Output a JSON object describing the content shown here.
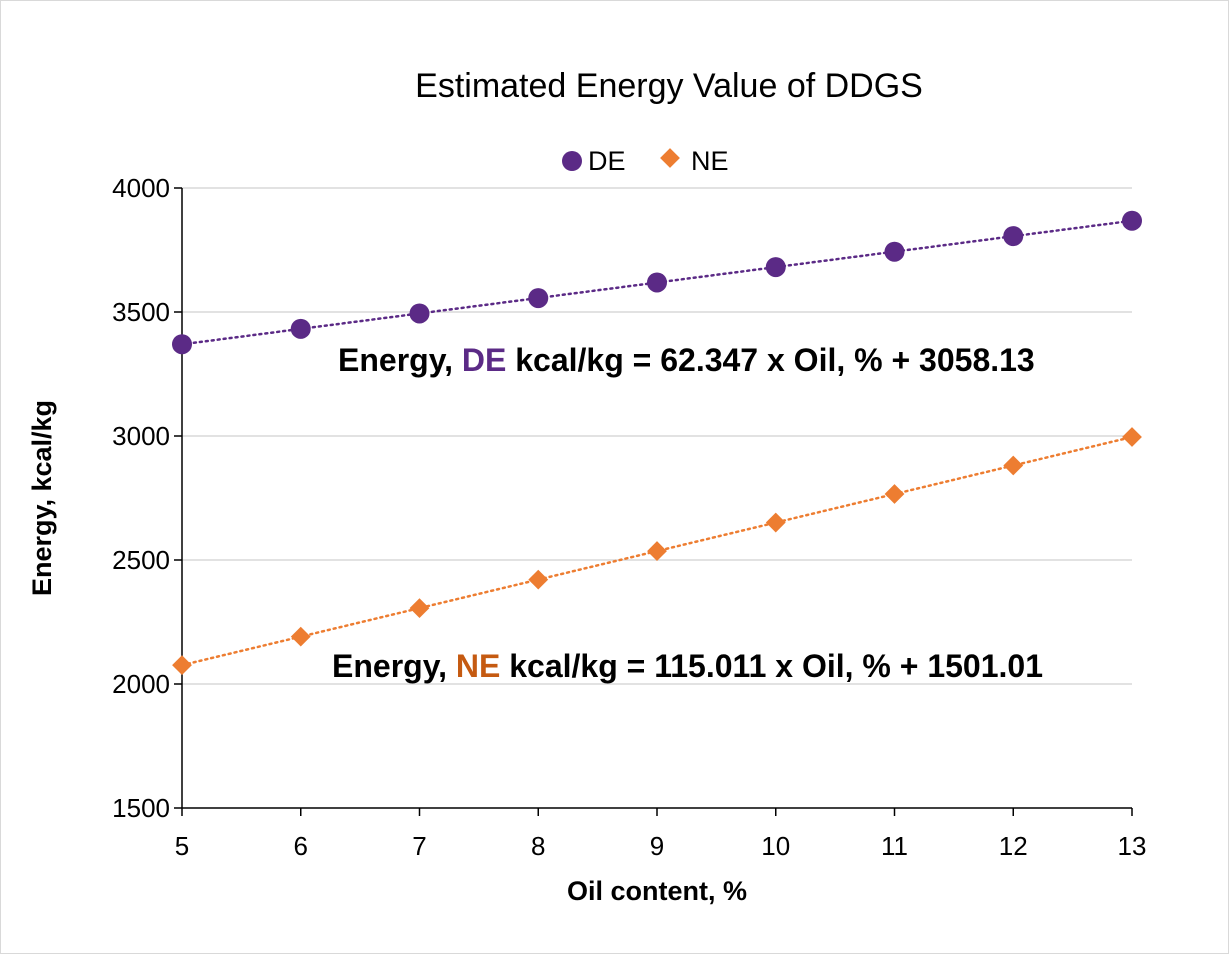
{
  "chart_data": {
    "type": "scatter",
    "title": "Estimated Energy Value of DDGS",
    "xlabel": "Oil content, %",
    "ylabel": "Energy,  kcal/kg",
    "xlim": [
      5,
      13
    ],
    "ylim": [
      1500,
      4000
    ],
    "x_ticks": [
      "5",
      "6",
      "7",
      "8",
      "9",
      "10",
      "11",
      "12",
      "13"
    ],
    "y_ticks": [
      "1500",
      "2000",
      "2500",
      "3000",
      "3500",
      "4000"
    ],
    "grid": "horizontal",
    "legend_position": "top",
    "x": [
      5,
      6,
      7,
      8,
      9,
      10,
      11,
      12,
      13
    ],
    "series": [
      {
        "name": "DE",
        "marker": "circle",
        "color": "#5b2a86",
        "values": [
          3370,
          3432,
          3494,
          3556,
          3619,
          3681,
          3743,
          3806,
          3868
        ],
        "trendline": "linear, dotted"
      },
      {
        "name": "NE",
        "marker": "diamond",
        "color": "#ed7d31",
        "values": [
          2076,
          2191,
          2306,
          2421,
          2536,
          2651,
          2766,
          2881,
          2996
        ],
        "trendline": "linear, dotted"
      }
    ],
    "annotations": [
      {
        "prefix": "Energy, ",
        "highlight": "DE",
        "highlight_color": "#5b2a86",
        "suffix": " kcal/kg = 62.347 x Oil, % + 3058.13"
      },
      {
        "prefix": "Energy, ",
        "highlight": "NE",
        "highlight_color": "#c55a11",
        "suffix": " kcal/kg = 115.011 x Oil, % + 1501.01"
      }
    ]
  }
}
